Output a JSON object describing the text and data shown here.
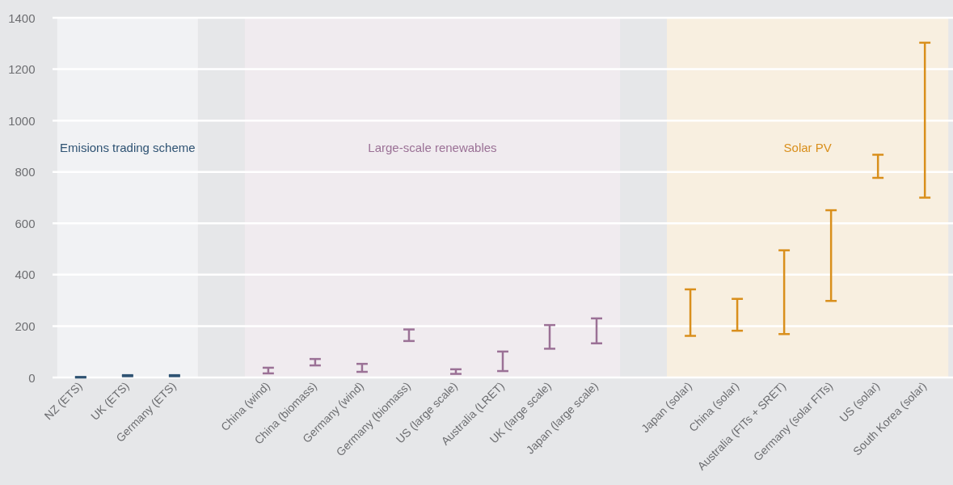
{
  "chart_data": {
    "type": "bar",
    "categories": [
      "NZ (ETS)",
      "UK (ETS)",
      "Germany (ETS)",
      null,
      "China (wind)",
      "China (biomass)",
      "Germany (wind)",
      "Germany (biomass)",
      "US (large scale)",
      "Australia (LRET)",
      "UK (large scale)",
      "Japan (large scale)",
      null,
      "Japan (solar)",
      "China (solar)",
      "Australia (FITs + SRET)",
      "Germany (solar FITs)",
      "US (solar)",
      "South Korea (solar)"
    ],
    "base": [
      0,
      5,
      5,
      null,
      16,
      47,
      22,
      142,
      14,
      25,
      112,
      133,
      null,
      162,
      182,
      169,
      298,
      777,
      700
    ],
    "values": [
      2,
      4,
      4,
      null,
      22,
      25,
      31,
      45,
      18,
      76,
      92,
      97,
      null,
      181,
      124,
      326,
      353,
      90,
      603
    ],
    "colors": [
      "#2f5373",
      "#2f5373",
      "#2f5373",
      null,
      "#9b7196",
      "#9b7196",
      "#9b7196",
      "#9b7196",
      "#9b7196",
      "#9b7196",
      "#9b7196",
      "#9b7196",
      null,
      "#d98f1c",
      "#d98f1c",
      "#d98f1c",
      "#d98f1c",
      "#d98f1c",
      "#d98f1c"
    ],
    "ylim": [
      0,
      1400
    ],
    "yticks": [
      0,
      200,
      400,
      600,
      800,
      1000,
      1200,
      1400
    ],
    "grid": "y",
    "bands": [
      {
        "axis": "x",
        "from": "NZ (ETS)",
        "to": "Germany (ETS)",
        "label": "Emisions trading scheme",
        "color": "#f1f2f4"
      },
      {
        "axis": "x",
        "from": "China (wind)",
        "to": "Japan (large scale)",
        "label": "Large-scale renewables",
        "color": "#f0ebef"
      },
      {
        "axis": "x",
        "from": "Japan (solar)",
        "to": "South Korea (solar)",
        "label": "Solar PV",
        "color": "#f8efe0"
      }
    ]
  }
}
